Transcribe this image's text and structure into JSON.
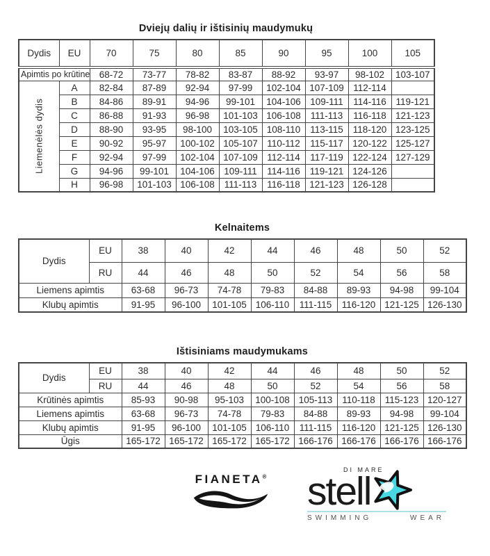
{
  "page": {
    "background": "#ffffff"
  },
  "colors": {
    "border": "#454545",
    "text": "#2c2c2c",
    "star_cyan": "#49d7e3",
    "underline_cyan": "#abdee7",
    "tagline_gray": "#4f4f4f"
  },
  "tables": [
    {
      "id": "t1",
      "title": "Dviejų dalių ir ištisinių maudymukų",
      "rows": [
        {
          "cells": [
            {
              "t": "Dydis",
              "n": "col-header-dydis"
            },
            {
              "t": "EU",
              "n": "col-header-eu"
            },
            "70",
            "75",
            "80",
            "85",
            "90",
            "95",
            "100",
            "105"
          ]
        },
        {
          "cells": [
            {
              "t": "Apimtis po krūtine",
              "cs": 2,
              "cls": "rowlabel",
              "n": "row-label-apimtis-po-krutine"
            },
            "68-72",
            "73-77",
            "78-82",
            "83-87",
            "88-92",
            "93-97",
            "98-102",
            "103-107"
          ]
        },
        {
          "cells": [
            {
              "t": "Liemenėlės dydis",
              "rs": 8,
              "cls": "vlabel",
              "n": "vertical-label-liemeneles-dydis"
            },
            {
              "t": "A",
              "n": "cup-label"
            },
            "82-84",
            "87-89",
            "92-94",
            "97-99",
            "102-104",
            "107-109",
            "112-114",
            ""
          ]
        },
        {
          "cells": [
            {
              "t": "B",
              "n": "cup-label"
            },
            "84-86",
            "89-91",
            "94-96",
            "99-101",
            "104-106",
            "109-111",
            "114-116",
            "119-121"
          ]
        },
        {
          "cells": [
            {
              "t": "C",
              "n": "cup-label"
            },
            "86-88",
            "91-93",
            "96-98",
            "101-103",
            "106-108",
            "111-113",
            "116-118",
            "121-123"
          ]
        },
        {
          "cells": [
            {
              "t": "D",
              "n": "cup-label"
            },
            "88-90",
            "93-95",
            "98-100",
            "103-105",
            "108-110",
            "113-115",
            "118-120",
            "123-125"
          ]
        },
        {
          "cells": [
            {
              "t": "E",
              "n": "cup-label"
            },
            "90-92",
            "95-97",
            "100-102",
            "105-107",
            "110-112",
            "115-117",
            "120-122",
            "125-127"
          ]
        },
        {
          "cells": [
            {
              "t": "F",
              "n": "cup-label"
            },
            "92-94",
            "97-99",
            "102-104",
            "107-109",
            "112-114",
            "117-119",
            "122-124",
            "127-129"
          ]
        },
        {
          "cells": [
            {
              "t": "G",
              "n": "cup-label"
            },
            "94-96",
            "99-101",
            "104-106",
            "109-111",
            "114-116",
            "119-121",
            "124-126",
            ""
          ]
        },
        {
          "cells": [
            {
              "t": "H",
              "n": "cup-label"
            },
            "96-98",
            "101-103",
            "106-108",
            "111-113",
            "116-118",
            "121-123",
            "126-128",
            ""
          ]
        }
      ]
    },
    {
      "id": "t2",
      "title": "Kelnaitems",
      "rows": [
        {
          "cells": [
            {
              "t": "Dydis",
              "rs": 2,
              "n": "col-header-dydis"
            },
            {
              "t": "EU",
              "n": "row-header-eu"
            },
            "38",
            "40",
            "42",
            "44",
            "46",
            "48",
            "50",
            "52"
          ]
        },
        {
          "cells": [
            {
              "t": "RU",
              "n": "row-header-ru"
            },
            "44",
            "46",
            "48",
            "50",
            "52",
            "54",
            "56",
            "58"
          ]
        },
        {
          "cells": [
            {
              "t": "Liemens apimtis",
              "cs": 2,
              "n": "row-label-liemens-apimtis"
            },
            "63-68",
            "96-73",
            "74-78",
            "79-83",
            "84-88",
            "89-93",
            "94-98",
            "99-104"
          ]
        },
        {
          "cells": [
            {
              "t": "Klubų apimtis",
              "cs": 2,
              "n": "row-label-klubu-apimtis"
            },
            "91-95",
            "96-100",
            "101-105",
            "106-110",
            "111-115",
            "116-120",
            "121-125",
            "126-130"
          ]
        }
      ]
    },
    {
      "id": "t3",
      "title": "Ištisiniams maudymukams",
      "rows": [
        {
          "cells": [
            {
              "t": "Dydis",
              "rs": 2,
              "n": "col-header-dydis"
            },
            {
              "t": "EU",
              "n": "row-header-eu"
            },
            "38",
            "40",
            "42",
            "44",
            "46",
            "48",
            "50",
            "52"
          ]
        },
        {
          "cells": [
            {
              "t": "RU",
              "n": "row-header-ru"
            },
            "44",
            "46",
            "48",
            "50",
            "52",
            "54",
            "56",
            "58"
          ]
        },
        {
          "cells": [
            {
              "t": "Krūtinės apimtis",
              "cs": 2,
              "n": "row-label-krutines-apimtis"
            },
            "85-93",
            "90-98",
            "95-103",
            "100-108",
            "105-113",
            "110-118",
            "115-123",
            "120-127"
          ]
        },
        {
          "cells": [
            {
              "t": "Liemens apimtis",
              "cs": 2,
              "n": "row-label-liemens-apimtis"
            },
            "63-68",
            "96-73",
            "74-78",
            "79-83",
            "84-88",
            "89-93",
            "94-98",
            "99-104"
          ]
        },
        {
          "cells": [
            {
              "t": "Klubų apimtis",
              "cs": 2,
              "n": "row-label-klubu-apimtis"
            },
            "91-95",
            "96-100",
            "101-105",
            "106-110",
            "111-115",
            "116-120",
            "121-125",
            "126-130"
          ]
        },
        {
          "cells": [
            {
              "t": "Ūgis",
              "cs": 2,
              "n": "row-label-ugis"
            },
            "165-172",
            "165-172",
            "165-172",
            "165-172",
            "166-176",
            "166-176",
            "166-176",
            "166-176"
          ]
        }
      ]
    }
  ],
  "logos": {
    "fianeta": {
      "wordmark": "FIANETA",
      "registered": "®"
    },
    "stella": {
      "di_mare": "DI MARE",
      "wordmark": "stell",
      "star_color": "#49d7e3",
      "tagline_left": "SWIMMING",
      "tagline_right": "WEAR"
    }
  }
}
